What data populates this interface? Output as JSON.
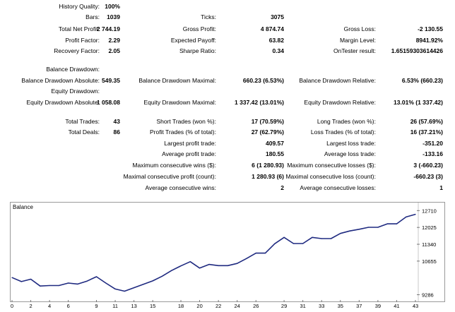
{
  "stats": {
    "rows": [
      [
        {
          "label": "History Quality:",
          "value": "100%"
        }
      ],
      [
        {
          "label": "Bars:",
          "value": "1039"
        },
        {
          "label": "Ticks:",
          "value": "3075"
        }
      ],
      [
        {
          "label": "Total Net Profit:",
          "value": "2 744.19"
        },
        {
          "label": "Gross Profit:",
          "value": "4 874.74"
        },
        {
          "label": "Gross Loss:",
          "value": "-2 130.55"
        }
      ],
      [
        {
          "label": "Profit Factor:",
          "value": "2.29"
        },
        {
          "label": "Expected Payoff:",
          "value": "63.82"
        },
        {
          "label": "Margin Level:",
          "value": "8941.92%"
        }
      ],
      [
        {
          "label": "Recovery Factor:",
          "value": "2.05"
        },
        {
          "label": "Sharpe Ratio:",
          "value": "0.34"
        },
        {
          "label": "OnTester result:",
          "value": "1.65159303614426"
        }
      ],
      [
        {
          "label": "Balance Drawdown:",
          "value": ""
        }
      ],
      [
        {
          "label": "Balance Drawdown Absolute:",
          "value": "549.35"
        },
        {
          "label": "Balance Drawdown Maximal:",
          "value": "660.23 (6.53%)"
        },
        {
          "label": "Balance Drawdown Relative:",
          "value": "6.53% (660.23)"
        }
      ],
      [
        {
          "label": "Equity Drawdown:",
          "value": ""
        }
      ],
      [
        {
          "label": "Equity Drawdown Absolute:",
          "value": "1 058.08"
        },
        {
          "label": "Equity Drawdown Maximal:",
          "value": "1 337.42 (13.01%)"
        },
        {
          "label": "Equity Drawdown Relative:",
          "value": "13.01% (1 337.42)"
        }
      ],
      [
        {
          "label": "Total Trades:",
          "value": "43"
        },
        {
          "label": "Short Trades (won %):",
          "value": "17 (70.59%)"
        },
        {
          "label": "Long Trades (won %):",
          "value": "26 (57.69%)"
        }
      ],
      [
        {
          "label": "Total Deals:",
          "value": "86"
        },
        {
          "label": "Profit Trades (% of total):",
          "value": "27 (62.79%)"
        },
        {
          "label": "Loss Trades (% of total):",
          "value": "16 (37.21%)"
        }
      ],
      [
        {
          "label": "",
          "value": ""
        },
        {
          "label": "Largest profit trade:",
          "value": "409.57"
        },
        {
          "label": "Largest loss trade:",
          "value": "-351.20"
        }
      ],
      [
        {
          "label": "",
          "value": ""
        },
        {
          "label": "Average profit trade:",
          "value": "180.55"
        },
        {
          "label": "Average loss trade:",
          "value": "-133.16"
        }
      ],
      [
        {
          "label": "",
          "value": ""
        },
        {
          "label": "Maximum consecutive wins ($):",
          "value": "6 (1 280.93)"
        },
        {
          "label": "Maximum consecutive losses ($):",
          "value": "3 (-660.23)"
        }
      ],
      [
        {
          "label": "",
          "value": ""
        },
        {
          "label": "Maximal consecutive profit (count):",
          "value": "1 280.93 (6)"
        },
        {
          "label": "Maximal consecutive loss (count):",
          "value": "-660.23 (3)"
        }
      ],
      [
        {
          "label": "",
          "value": ""
        },
        {
          "label": "Average consecutive wins:",
          "value": "2"
        },
        {
          "label": "Average consecutive losses:",
          "value": "1"
        }
      ]
    ]
  },
  "chart_data": {
    "type": "line",
    "title": "Balance",
    "line_color": "#1f2a80",
    "x_ticks": [
      "0",
      "2",
      "4",
      "6",
      "9",
      "11",
      "13",
      "15",
      "18",
      "20",
      "22",
      "24",
      "26",
      "29",
      "31",
      "33",
      "35",
      "37",
      "39",
      "41",
      "43"
    ],
    "y_ticks": [
      "12710",
      "12025",
      "11340",
      "10655",
      "9286"
    ],
    "ylim": [
      9100,
      12950
    ],
    "xlim": [
      0,
      43
    ],
    "x": [
      0,
      1,
      2,
      3,
      4,
      5,
      6,
      7,
      8,
      9,
      10,
      11,
      12,
      13,
      14,
      15,
      16,
      17,
      18,
      19,
      20,
      21,
      22,
      23,
      24,
      25,
      26,
      27,
      28,
      29,
      30,
      31,
      32,
      33,
      34,
      35,
      36,
      37,
      38,
      39,
      40,
      41,
      42,
      43
    ],
    "y": [
      9985,
      9820,
      9920,
      9640,
      9660,
      9660,
      9760,
      9720,
      9840,
      10020,
      9760,
      9520,
      9430,
      9570,
      9710,
      9850,
      10040,
      10270,
      10460,
      10630,
      10370,
      10520,
      10470,
      10470,
      10560,
      10760,
      10980,
      10980,
      11360,
      11620,
      11370,
      11370,
      11620,
      11570,
      11570,
      11780,
      11880,
      11950,
      12030,
      12030,
      12170,
      12170,
      12450,
      12560
    ]
  }
}
